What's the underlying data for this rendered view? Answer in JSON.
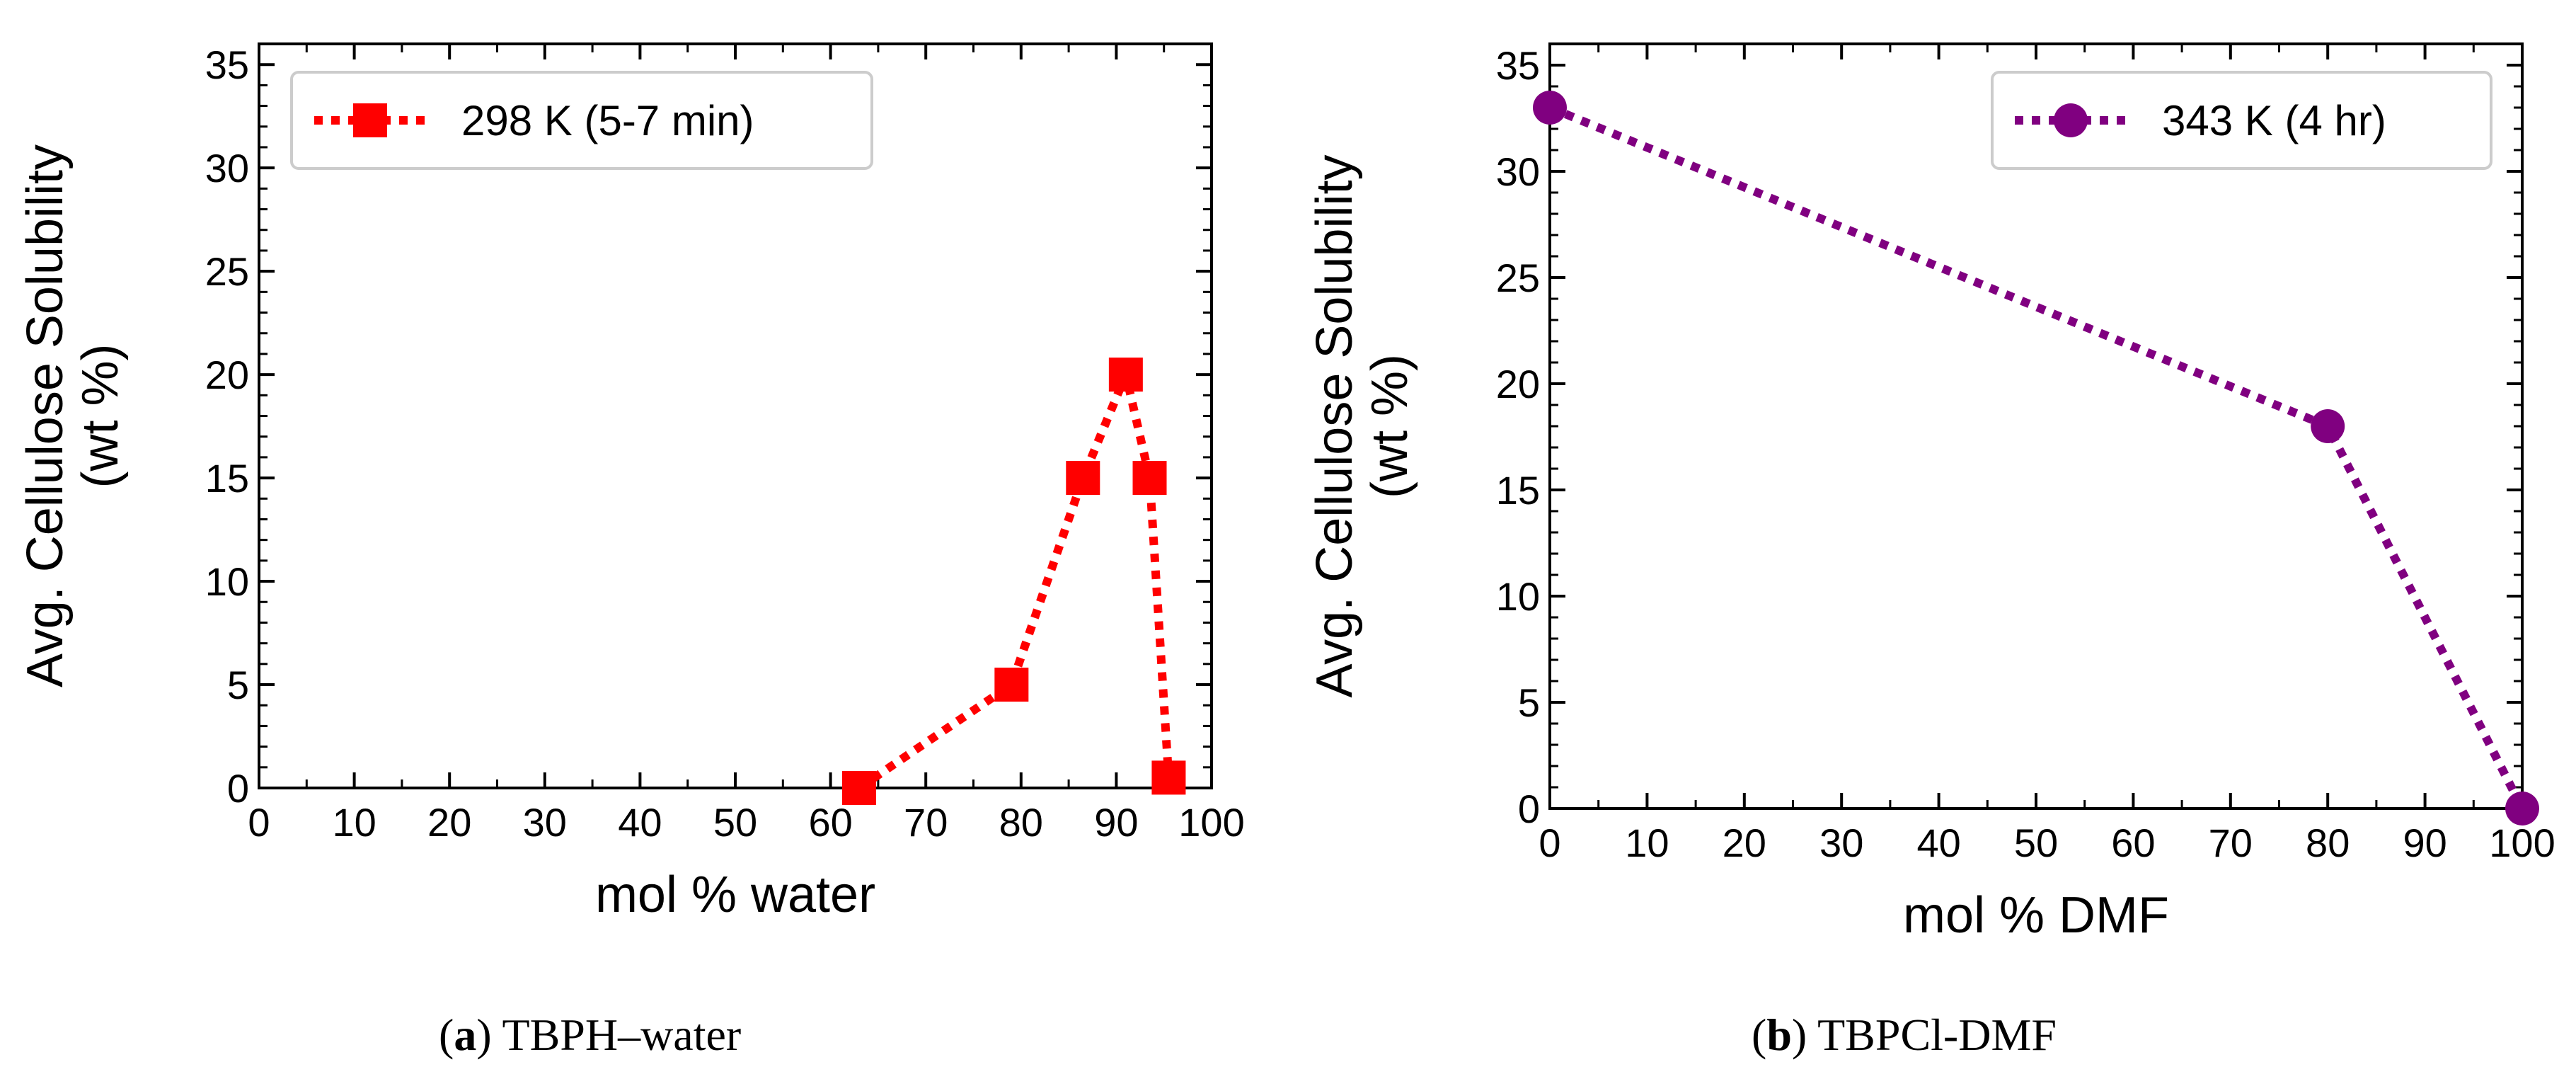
{
  "chart_data": [
    {
      "type": "line",
      "panel_letter": "a",
      "caption": "TBPH–water",
      "xlabel": "mol % water",
      "ylabel_line1": "Avg. Cellulose Solubility",
      "ylabel_line2": "(wt %)",
      "xlim": [
        0,
        100
      ],
      "ylim": [
        0,
        36
      ],
      "xticks": [
        0,
        10,
        20,
        30,
        40,
        50,
        60,
        70,
        80,
        90,
        100
      ],
      "yticks": [
        0,
        5,
        10,
        15,
        20,
        25,
        30,
        35
      ],
      "legend_position": "top-left",
      "series": [
        {
          "name": "298 K (5-7 min)",
          "color": "#ff0000",
          "marker": "square",
          "linestyle": "dotted",
          "x": [
            63,
            79,
            86.5,
            91,
            93.5,
            95.5
          ],
          "y": [
            0,
            5,
            15,
            20,
            15,
            0.5
          ]
        }
      ]
    },
    {
      "type": "line",
      "panel_letter": "b",
      "caption": "TBPCl-DMF",
      "xlabel": "mol % DMF",
      "ylabel_line1": "Avg. Cellulose Solubility",
      "ylabel_line2": "(wt %)",
      "xlim": [
        0,
        100
      ],
      "ylim": [
        0,
        36
      ],
      "xticks": [
        0,
        10,
        20,
        30,
        40,
        50,
        60,
        70,
        80,
        90,
        100
      ],
      "yticks": [
        0,
        5,
        10,
        15,
        20,
        25,
        30,
        35
      ],
      "legend_position": "top-right",
      "series": [
        {
          "name": "343 K (4 hr)",
          "color": "#800080",
          "marker": "circle",
          "linestyle": "dotted",
          "x": [
            0,
            80,
            100
          ],
          "y": [
            33,
            18,
            0
          ]
        }
      ]
    }
  ]
}
